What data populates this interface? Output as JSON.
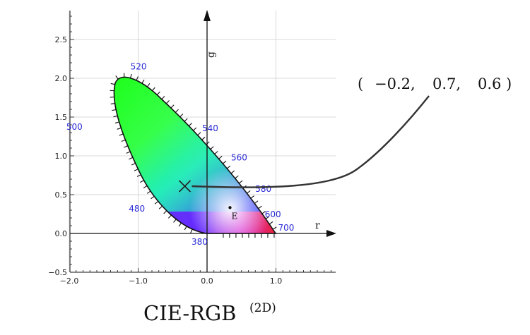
{
  "title": {
    "main": "CIE-RGB",
    "sup": "(2D)"
  },
  "axes": {
    "x_name": "r",
    "y_name": "g",
    "x_ticks": [
      {
        "v": -2.0,
        "label": "−2.0"
      },
      {
        "v": -1.0,
        "label": "−1.0"
      },
      {
        "v": 0.0,
        "label": "0.0"
      },
      {
        "v": 1.0,
        "label": "1.0"
      }
    ],
    "y_ticks": [
      {
        "v": -0.5,
        "label": "−0.5"
      },
      {
        "v": 0.0,
        "label": "0.0"
      },
      {
        "v": 0.5,
        "label": "0.5"
      },
      {
        "v": 1.0,
        "label": "1.0"
      },
      {
        "v": 1.5,
        "label": "1.5"
      },
      {
        "v": 2.0,
        "label": "2.0"
      },
      {
        "v": 2.5,
        "label": "2.5"
      }
    ],
    "xlim": [
      -2.0,
      1.85
    ],
    "ylim": [
      -0.5,
      2.85
    ],
    "grid": true
  },
  "wavelength_labels": [
    {
      "nm": "380",
      "r": 0.0,
      "g": 0.0
    },
    {
      "nm": "480",
      "r": -0.5,
      "g": 0.12
    },
    {
      "nm": "500",
      "r": -1.55,
      "g": 1.3
    },
    {
      "nm": "520",
      "r": -1.05,
      "g": 1.95
    },
    {
      "nm": "540",
      "r": 0.0,
      "g": 1.2
    },
    {
      "nm": "560",
      "r": 0.39,
      "g": 0.76
    },
    {
      "nm": "580",
      "r": 0.72,
      "g": 0.39
    },
    {
      "nm": "600",
      "r": 0.92,
      "g": 0.12
    },
    {
      "nm": "700",
      "r": 1.0,
      "g": 0.0
    }
  ],
  "white_point": {
    "label": "E",
    "r": 0.333,
    "g": 0.333
  },
  "marked_point": {
    "r": -0.2,
    "g": 0.7,
    "b": 0.6
  },
  "coordinate_readout": {
    "open": "(",
    "r": "−0.2,",
    "g": "0.7,",
    "b": "0.6",
    "close": ")"
  },
  "colors": {
    "label_blue": "#2a2ad8",
    "axis": "#111111",
    "grid": "#cccccc",
    "callout_line": "#333333"
  }
}
